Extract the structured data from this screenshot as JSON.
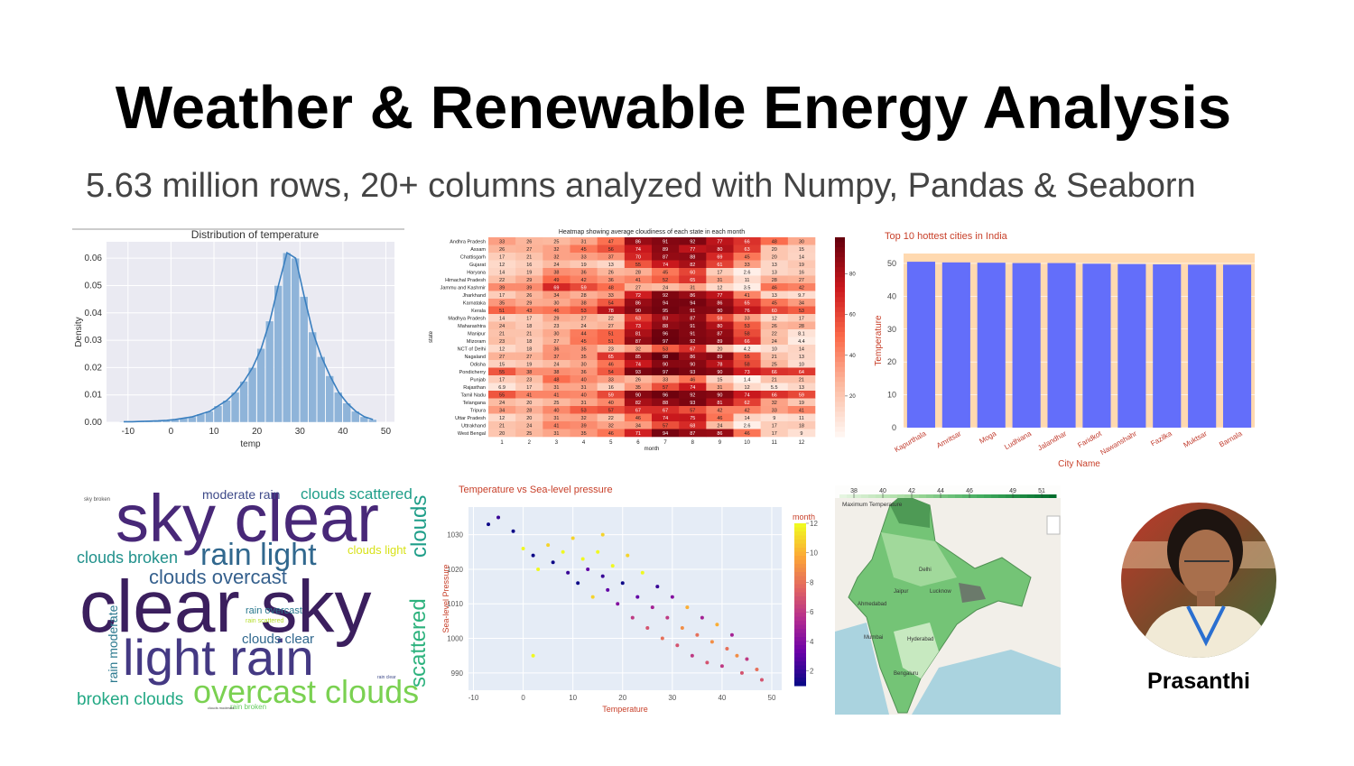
{
  "title": "Weather & Renewable Energy Analysis",
  "subtitle": "5.63 million rows, 20+ columns analyzed with Numpy, Pandas & Seaborn",
  "chart_data": [
    {
      "type": "histogram",
      "title": "Distribution of temperature",
      "x_label": "temp",
      "y_label": "Density",
      "color": "#8fb4d9",
      "line_color": "#3a7fbf",
      "bins": [
        -12,
        -10,
        -8,
        -6,
        -4,
        -2,
        0,
        2,
        4,
        6,
        8,
        10,
        12,
        14,
        16,
        18,
        20,
        22,
        24,
        26,
        28,
        30,
        32,
        34,
        36,
        38,
        40,
        42,
        44,
        46,
        48
      ],
      "values": [
        0.0002,
        0.0002,
        0.0003,
        0.0004,
        0.0005,
        0.0007,
        0.001,
        0.0015,
        0.002,
        0.003,
        0.004,
        0.006,
        0.008,
        0.011,
        0.015,
        0.02,
        0.027,
        0.037,
        0.05,
        0.062,
        0.06,
        0.046,
        0.033,
        0.024,
        0.017,
        0.011,
        0.007,
        0.004,
        0.002,
        0.001
      ],
      "xlim": [
        -15,
        52
      ],
      "xticks": [
        -10,
        0,
        10,
        20,
        30,
        40,
        50
      ],
      "ylim": [
        0,
        0.066
      ],
      "yticks": [
        {
          "value": 0,
          "label": "0.00"
        },
        {
          "value": 0.01,
          "label": "0.01"
        },
        {
          "value": 0.02,
          "label": "0.02"
        },
        {
          "value": 0.03,
          "label": "0.03"
        },
        {
          "value": 0.04,
          "label": "0.04"
        },
        {
          "value": 0.05,
          "label": "0.05"
        },
        {
          "value": 0.06,
          "label": "0.06"
        }
      ],
      "grid": true
    },
    {
      "type": "heatmap",
      "title": "Heatmap showing average cloudiness of each state in each month",
      "x_label": "month",
      "y_label": "state",
      "categories": [
        1,
        2,
        3,
        4,
        5,
        6,
        7,
        8,
        9,
        10,
        11,
        12
      ],
      "rows": [
        "Andhra Pradesh",
        "Assam",
        "Chattisgarh",
        "Gujarat",
        "Haryana",
        "Himachal Pradesh",
        "Jammu and Kashmir",
        "Jharkhand",
        "Karnataka",
        "Kerala",
        "Madhya Pradesh",
        "Maharashtra",
        "Manipur",
        "Mizoram",
        "NCT of Delhi",
        "Nagaland",
        "Odisha",
        "Pondicherry",
        "Punjab",
        "Rajasthan",
        "Tamil Nadu",
        "Telangana",
        "Tripura",
        "Uttar Pradesh",
        "Uttrakhand",
        "West Bengal"
      ],
      "values": [
        [
          33,
          26,
          25,
          31,
          47,
          86,
          91,
          92,
          77,
          66,
          48,
          30
        ],
        [
          26,
          27,
          32,
          45,
          56,
          74,
          89,
          77,
          80,
          63,
          20,
          15
        ],
        [
          17,
          21,
          32,
          33,
          37,
          70,
          87,
          88,
          69,
          45,
          20,
          14
        ],
        [
          12,
          16,
          24,
          19,
          13,
          55,
          74,
          82,
          61,
          33,
          13,
          19
        ],
        [
          14,
          19,
          38,
          36,
          26,
          28,
          45,
          60,
          17,
          2.6,
          13,
          16
        ],
        [
          22,
          29,
          49,
          42,
          36,
          41,
          52,
          65,
          31,
          11,
          28,
          27
        ],
        [
          39,
          39,
          69,
          59,
          48,
          27,
          24,
          31,
          12,
          3.5,
          46,
          42
        ],
        [
          17,
          26,
          34,
          28,
          33,
          72,
          92,
          86,
          77,
          41,
          13,
          9.7
        ],
        [
          35,
          29,
          30,
          38,
          54,
          86,
          94,
          94,
          86,
          65,
          45,
          34
        ],
        [
          51,
          43,
          46,
          53,
          78,
          90,
          95,
          91,
          90,
          76,
          60,
          53
        ],
        [
          14,
          17,
          29,
          27,
          22,
          63,
          83,
          87,
          59,
          33,
          12,
          17
        ],
        [
          24,
          18,
          23,
          24,
          27,
          73,
          88,
          91,
          80,
          53,
          26,
          28
        ],
        [
          21,
          21,
          30,
          44,
          51,
          81,
          96,
          91,
          87,
          58,
          22,
          8.1
        ],
        [
          23,
          18,
          27,
          45,
          51,
          87,
          97,
          92,
          89,
          66,
          24,
          4.4
        ],
        [
          12,
          18,
          36,
          35,
          23,
          32,
          53,
          67,
          20,
          4.2,
          10,
          14
        ],
        [
          27,
          27,
          37,
          35,
          65,
          85,
          98,
          86,
          89,
          55,
          21,
          13
        ],
        [
          15,
          19,
          24,
          30,
          46,
          74,
          90,
          90,
          78,
          58,
          25,
          10
        ],
        [
          55,
          38,
          38,
          36,
          54,
          93,
          97,
          93,
          90,
          73,
          66,
          64
        ],
        [
          17,
          23,
          48,
          40,
          33,
          26,
          33,
          46,
          15,
          1.4,
          21,
          21
        ],
        [
          6.9,
          17,
          31,
          31,
          16,
          35,
          57,
          74,
          31,
          12,
          5.5,
          13
        ],
        [
          55,
          41,
          41,
          40,
          59,
          90,
          96,
          92,
          90,
          74,
          66,
          59
        ],
        [
          24,
          20,
          25,
          31,
          40,
          82,
          88,
          93,
          81,
          62,
          32,
          19
        ],
        [
          34,
          28,
          40,
          53,
          57,
          67,
          67,
          57,
          42,
          42,
          33,
          41
        ],
        [
          12,
          20,
          31,
          32,
          22,
          46,
          74,
          75,
          46,
          14,
          9,
          11
        ],
        [
          21,
          24,
          41,
          39,
          32,
          34,
          57,
          68,
          24,
          2.6,
          17,
          18
        ],
        [
          20,
          25,
          31,
          35,
          46,
          71,
          94,
          87,
          86,
          46,
          17,
          9
        ]
      ],
      "zlim": [
        0,
        98
      ],
      "zticks": [
        20,
        40,
        60,
        80
      ]
    },
    {
      "type": "bar",
      "title": "Top 10 hottest cities in India",
      "x_label": "City Name",
      "y_label": "Temperature",
      "color": "#636efa",
      "background": "#ffd9b0",
      "categories": [
        "Kapurthala",
        "Amritsar",
        "Moga",
        "Ludhiana",
        "Jalandhar",
        "Faridkot",
        "Nawanshahr",
        "Fazilka",
        "Muktsar",
        "Barnala"
      ],
      "values": [
        50.5,
        50.3,
        50.2,
        50.1,
        50.1,
        49.9,
        49.8,
        49.7,
        49.6,
        49.6
      ],
      "ylim": [
        0,
        53
      ],
      "yticks": [
        0,
        10,
        20,
        30,
        40,
        50
      ]
    },
    {
      "type": "wordcloud",
      "words": [
        "sky clear",
        "clear sky",
        "light rain",
        "overcast clouds",
        "rain light",
        "clouds overcast",
        "clouds broken",
        "broken clouds",
        "scattered",
        "clouds",
        "moderate rain",
        "clouds scattered",
        "clouds light",
        "rain overcast",
        "clouds clear",
        "rain moderate",
        "rain scattered",
        "sky broken",
        "rain clear",
        "rain broken",
        "clouds moderate"
      ]
    },
    {
      "type": "scatter",
      "title": "Temperature vs Sea-level pressure",
      "x_label": "Temperature",
      "y_label": "Sea-level Pressure",
      "colorbar_label": "month",
      "x": [
        -7,
        -5,
        -2,
        0,
        2,
        3,
        5,
        6,
        8,
        9,
        10,
        11,
        12,
        13,
        14,
        15,
        16,
        17,
        18,
        19,
        20,
        21,
        22,
        23,
        24,
        25,
        26,
        27,
        28,
        29,
        30,
        31,
        32,
        33,
        34,
        35,
        36,
        37,
        38,
        39,
        40,
        41,
        42,
        43,
        44,
        45,
        47,
        48,
        2,
        16
      ],
      "y": [
        1033,
        1035,
        1031,
        1026,
        1024,
        1020,
        1027,
        1022,
        1025,
        1019,
        1029,
        1016,
        1023,
        1020,
        1012,
        1025,
        1018,
        1014,
        1021,
        1010,
        1016,
        1024,
        1006,
        1012,
        1019,
        1003,
        1009,
        1015,
        1000,
        1006,
        1012,
        998,
        1003,
        1009,
        995,
        1001,
        1006,
        993,
        999,
        1004,
        992,
        997,
        1001,
        995,
        990,
        994,
        991,
        988,
        995,
        1030
      ],
      "color_values": [
        1,
        2,
        1,
        12,
        1,
        12,
        11,
        1,
        12,
        2,
        11,
        1,
        12,
        3,
        11,
        12,
        2,
        3,
        12,
        4,
        1,
        11,
        6,
        3,
        12,
        7,
        5,
        2,
        8,
        6,
        4,
        7,
        9,
        10,
        6,
        8,
        5,
        7,
        9,
        10,
        6,
        8,
        5,
        9,
        7,
        6,
        8,
        7,
        12,
        11
      ],
      "xlim": [
        -11,
        52
      ],
      "xticks": [
        -10,
        0,
        10,
        20,
        30,
        40,
        50
      ],
      "ylim": [
        985,
        1038
      ],
      "yticks": [
        990,
        1000,
        1010,
        1020,
        1030
      ],
      "clim": [
        1,
        12
      ],
      "cticks": [
        2,
        4,
        6,
        8,
        10,
        12
      ]
    },
    {
      "type": "map",
      "legend_title": "Maximum Temperature",
      "range": [
        37,
        52
      ],
      "ticks": [
        38,
        40,
        42,
        44,
        46,
        49,
        51
      ],
      "places": [
        "Delhi",
        "Jaipur",
        "Lucknow",
        "Ahmedabad",
        "Mumbai",
        "Hyderabad",
        "Bengaluru"
      ]
    }
  ],
  "profile": {
    "name": "Prasanthi"
  }
}
